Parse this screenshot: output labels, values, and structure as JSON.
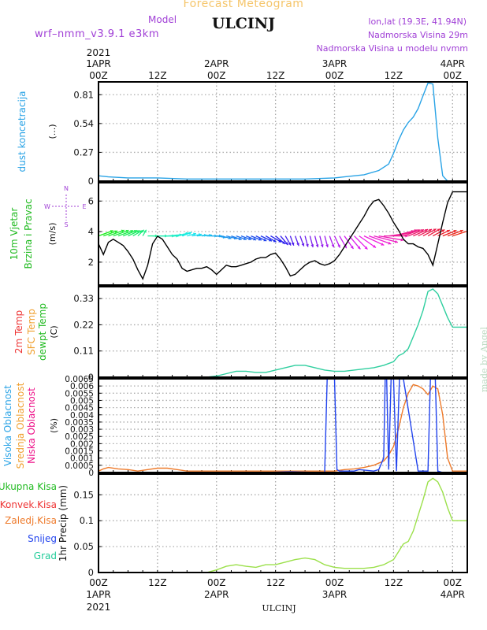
{
  "header": {
    "title": "Forecast Meteogram",
    "station": "ULCINJ",
    "model_label": "Model",
    "model_name": "wrf–nmm_v3.9.1 e3km",
    "coords": "lon,lat (19.3E, 41.94N)",
    "elevation": "Nadmorska Visina 29m",
    "model_elevation": "Nadmorska Visina u modelu nvmm",
    "watermark": "made by Angel"
  },
  "time_axis": {
    "year": "2021",
    "ticks": [
      {
        "t": 0,
        "top": "1APR",
        "bottom": "00Z"
      },
      {
        "t": 12,
        "top": "",
        "bottom": "12Z"
      },
      {
        "t": 24,
        "top": "2APR",
        "bottom": "00Z"
      },
      {
        "t": 36,
        "top": "",
        "bottom": "12Z"
      },
      {
        "t": 48,
        "top": "3APR",
        "bottom": "00Z"
      },
      {
        "t": 60,
        "top": "",
        "bottom": "12Z"
      },
      {
        "t": 72,
        "top": "4APR",
        "bottom": "00Z"
      }
    ],
    "footer_label": "ULCINJ"
  },
  "colors": {
    "dust": "#29a3e6",
    "wind_speed": "#000000",
    "temp": "#2fcf9f",
    "cloud_high": "#2244ee",
    "cloud_mid": "#ee7a2a",
    "precip": "#9be04a",
    "grid": "#aaaaaa"
  },
  "chart_data": [
    {
      "type": "line",
      "name": "dust",
      "ylabels": [
        {
          "text": "dust koncetracija",
          "color": "#29a3e6"
        }
      ],
      "unit": "(...)",
      "yticks": [
        "0",
        "0.27",
        "0.54",
        "0.81"
      ],
      "ylim": [
        0,
        0.93
      ],
      "series": [
        {
          "color": "#29a3e6",
          "x": [
            0,
            2,
            6,
            12,
            18,
            24,
            30,
            36,
            42,
            48,
            50,
            54,
            57,
            59,
            60,
            61,
            62,
            63,
            64,
            65,
            66,
            67,
            68,
            69,
            70,
            71,
            72,
            73,
            75
          ],
          "y": [
            0.05,
            0.04,
            0.03,
            0.03,
            0.02,
            0.02,
            0.02,
            0.02,
            0.02,
            0.03,
            0.04,
            0.06,
            0.1,
            0.16,
            0.26,
            0.38,
            0.48,
            0.55,
            0.6,
            0.68,
            0.8,
            0.92,
            0.91,
            0.4,
            0.05,
            0.0,
            0.0,
            0.0,
            0.0
          ]
        }
      ]
    },
    {
      "type": "line",
      "name": "wind",
      "ylabels": [
        {
          "text": "10m Vjetar",
          "color": "#22bb22"
        },
        {
          "text": "Brzina i Pravac",
          "color": "#22bb22"
        }
      ],
      "unit": "(m/s)",
      "compass": {
        "n": "N",
        "s": "S",
        "w": "W",
        "e": "E"
      },
      "yticks": [
        "2",
        "4",
        "6"
      ],
      "yticks_values": [
        2,
        4,
        6
      ],
      "ylim": [
        0.5,
        7.2
      ],
      "series": [
        {
          "color": "#000000",
          "x": [
            0,
            1,
            2,
            3,
            4,
            5,
            6,
            7,
            8,
            9,
            10,
            11,
            12,
            13,
            14,
            15,
            16,
            17,
            18,
            19,
            20,
            21,
            22,
            23,
            24,
            25,
            26,
            27,
            28,
            29,
            30,
            31,
            32,
            33,
            34,
            35,
            36,
            37,
            38,
            39,
            40,
            41,
            42,
            43,
            44,
            45,
            46,
            47,
            48,
            49,
            50,
            51,
            52,
            53,
            54,
            55,
            56,
            57,
            58,
            59,
            60,
            61,
            62,
            63,
            64,
            65,
            66,
            67,
            68,
            69,
            70,
            71,
            72,
            73,
            74,
            75
          ],
          "y": [
            3.2,
            2.5,
            3.3,
            3.5,
            3.3,
            3.1,
            2.7,
            2.2,
            1.5,
            0.9,
            1.8,
            3.2,
            3.7,
            3.5,
            3.0,
            2.5,
            2.2,
            1.6,
            1.4,
            1.5,
            1.6,
            1.6,
            1.7,
            1.5,
            1.2,
            1.5,
            1.8,
            1.7,
            1.7,
            1.8,
            1.9,
            2.0,
            2.2,
            2.3,
            2.3,
            2.5,
            2.6,
            2.2,
            1.7,
            1.1,
            1.2,
            1.5,
            1.8,
            2.0,
            2.1,
            1.9,
            1.8,
            1.9,
            2.1,
            2.5,
            3.0,
            3.5,
            4.0,
            4.5,
            5.0,
            5.6,
            6.0,
            6.1,
            5.7,
            5.2,
            4.6,
            4.1,
            3.5,
            3.2,
            3.2,
            3.0,
            2.9,
            2.5,
            1.8,
            3.2,
            4.6,
            5.9,
            6.6,
            6.6,
            6.6,
            6.6
          ]
        }
      ],
      "arrows": {
        "start": 0,
        "step": 1,
        "dir": [
          250,
          250,
          250,
          250,
          250,
          248,
          245,
          240,
          225,
          210,
          270,
          270,
          270,
          270,
          265,
          265,
          255,
          250,
          255,
          260,
          265,
          265,
          270,
          270,
          280,
          285,
          285,
          290,
          290,
          290,
          292,
          292,
          295,
          295,
          300,
          300,
          310,
          320,
          330,
          340,
          340,
          340,
          345,
          345,
          345,
          345,
          345,
          340,
          335,
          330,
          325,
          320,
          315,
          305,
          295,
          290,
          285,
          280,
          270,
          262,
          256,
          252,
          250,
          248,
          246,
          244,
          242,
          240,
          242,
          244,
          248,
          250,
          252
        ],
        "len": [
          3.2,
          3.0,
          3.5,
          3.4,
          3.3,
          3.0,
          2.5,
          2.0,
          1.4,
          1.0,
          1.8,
          3.0,
          3.6,
          3.4,
          3.0,
          2.6,
          2.2,
          1.8,
          1.6,
          1.7,
          1.8,
          1.8,
          1.9,
          1.8,
          1.6,
          1.8,
          2.0,
          2.0,
          2.0,
          2.0,
          2.0,
          2.1,
          2.2,
          2.3,
          2.3,
          2.4,
          2.4,
          2.2,
          2.0,
          1.8,
          1.9,
          2.0,
          2.1,
          2.2,
          2.2,
          2.2,
          2.2,
          2.3,
          2.5,
          2.8,
          3.2,
          3.6,
          4.0,
          4.4,
          4.8,
          5.2,
          5.5,
          5.6,
          5.4,
          5.0,
          4.6,
          4.2,
          3.8,
          3.5,
          3.3,
          3.1,
          3.0,
          2.8,
          2.6,
          2.6,
          3.0,
          3.4,
          3.8
        ]
      }
    },
    {
      "type": "line",
      "name": "temperature",
      "ylabels": [
        {
          "text": "2m Temp",
          "color": "#ee3333"
        },
        {
          "text": "SFC Temp",
          "color": "#f0a030"
        },
        {
          "text": "dewpt Temp",
          "color": "#22bb22"
        }
      ],
      "unit": "(C)",
      "yticks": [
        "0",
        "0.11",
        "0.22",
        "0.33"
      ],
      "ylim": [
        0,
        0.38
      ],
      "series": [
        {
          "color": "#2fcf9f",
          "x": [
            0,
            6,
            12,
            18,
            22,
            24,
            26,
            28,
            30,
            32,
            34,
            36,
            38,
            40,
            42,
            44,
            46,
            48,
            50,
            52,
            54,
            56,
            58,
            60,
            61,
            62,
            63,
            64,
            65,
            66,
            67,
            68,
            69,
            70,
            71,
            72,
            73,
            75
          ],
          "y": [
            0.0,
            0.0,
            0.0,
            0.0,
            0.0,
            0.005,
            0.015,
            0.025,
            0.025,
            0.02,
            0.02,
            0.03,
            0.04,
            0.05,
            0.05,
            0.04,
            0.03,
            0.025,
            0.025,
            0.03,
            0.035,
            0.04,
            0.05,
            0.065,
            0.09,
            0.1,
            0.12,
            0.17,
            0.22,
            0.28,
            0.36,
            0.37,
            0.35,
            0.3,
            0.25,
            0.21,
            0.21,
            0.21
          ]
        }
      ]
    },
    {
      "type": "line",
      "name": "cloud",
      "ylabels": [
        {
          "text": "Visoka Oblacnost",
          "color": "#29a3e6"
        },
        {
          "text": "Srednja Oblacnost",
          "color": "#f0a030"
        },
        {
          "text": "Niska Oblacnost",
          "color": "#ee1188"
        }
      ],
      "unit": "(%)",
      "yticks": [
        "0",
        "0.0005",
        "0.001",
        "0.0015",
        "0.002",
        "0.0025",
        "0.003",
        "0.0035",
        "0.004",
        "0.0045",
        "0.005",
        "0.0055",
        "0.006",
        "0.0065"
      ],
      "ylim": [
        0,
        0.0065
      ],
      "series": [
        {
          "color": "#ee7a2a",
          "x": [
            0,
            1,
            2,
            4,
            6,
            8,
            10,
            12,
            14,
            16,
            18,
            20,
            24,
            28,
            32,
            36,
            40,
            44,
            48,
            50,
            52,
            54,
            56,
            58,
            59,
            60,
            61,
            62,
            63,
            64,
            65,
            66,
            67,
            68,
            69,
            70,
            71,
            72,
            73,
            75
          ],
          "y": [
            0.0001,
            0.00025,
            0.00035,
            0.00025,
            0.0002,
            0.0001,
            0.0002,
            0.0003,
            0.0003,
            0.0002,
            0.0001,
            0.0001,
            0.0001,
            0.0001,
            0.0001,
            0.0001,
            0.0001,
            0.0001,
            0.0001,
            0.0002,
            0.00025,
            0.00035,
            0.0005,
            0.0008,
            0.0012,
            0.0018,
            0.003,
            0.0045,
            0.0055,
            0.0061,
            0.006,
            0.0058,
            0.0054,
            0.006,
            0.0058,
            0.004,
            0.001,
            0.0001,
            0.0001,
            0.0001
          ]
        },
        {
          "color": "#2244ee",
          "x": [
            0,
            20,
            34,
            39,
            45,
            46,
            46.5,
            48,
            48.5,
            49,
            52,
            53,
            56,
            57,
            58,
            58.3,
            58.6,
            59,
            59.5,
            60,
            60.6,
            61.2,
            62,
            65,
            66.5,
            67,
            67.5,
            68.5,
            69,
            70,
            72,
            75
          ],
          "y": [
            0,
            0,
            0,
            5e-05,
            0,
            0,
            0.0065,
            0.0065,
            0.0002,
            0.0001,
            0.0001,
            0.0002,
            0.0001,
            0.0002,
            0.001,
            0.0065,
            0.0065,
            0.0002,
            0.0065,
            0.0065,
            0.0001,
            0.0065,
            0.0065,
            0.0001,
            0.0001,
            0.0001,
            0.0065,
            0.0065,
            0.0001,
            0,
            0,
            0
          ]
        }
      ]
    },
    {
      "type": "line",
      "name": "precip",
      "ylabels": [
        {
          "text": "Ukupna Kisa",
          "color": "#22bb22"
        },
        {
          "text": "Konvek.Kisa",
          "color": "#ee3333"
        },
        {
          "text": "Zaledj.Kisa",
          "color": "#ee7a2a"
        },
        {
          "text": "Snijeg",
          "color": "#2244ee"
        },
        {
          "text": "Grad",
          "color": "#22cc99"
        }
      ],
      "unit": "1hr Precip (mm)",
      "yticks": [
        "0",
        "0.05",
        "0.1",
        "0.15"
      ],
      "ylim": [
        0,
        0.19
      ],
      "series": [
        {
          "color": "#9be04a",
          "x": [
            0,
            6,
            12,
            18,
            22,
            24,
            26,
            28,
            30,
            32,
            34,
            36,
            38,
            40,
            42,
            44,
            46,
            48,
            50,
            52,
            54,
            56,
            58,
            60,
            61,
            62,
            63,
            64,
            65,
            66,
            67,
            68,
            69,
            70,
            71,
            72,
            73,
            75
          ],
          "y": [
            0.0,
            0.0,
            0.0,
            0.0,
            0.0,
            0.005,
            0.012,
            0.015,
            0.012,
            0.01,
            0.015,
            0.015,
            0.02,
            0.025,
            0.028,
            0.025,
            0.015,
            0.01,
            0.008,
            0.008,
            0.008,
            0.01,
            0.015,
            0.025,
            0.04,
            0.055,
            0.06,
            0.08,
            0.11,
            0.14,
            0.175,
            0.182,
            0.175,
            0.155,
            0.125,
            0.1,
            0.1,
            0.1
          ]
        }
      ]
    }
  ]
}
